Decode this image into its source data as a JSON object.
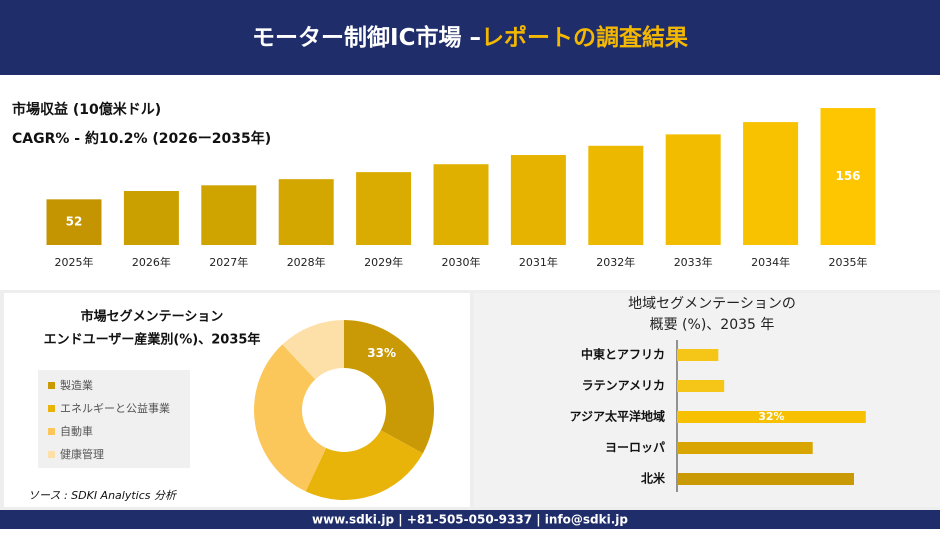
{
  "header": {
    "title": "モーター制御IC市場 –",
    "highlight": "レポートの調査結果"
  },
  "chart_data": [
    {
      "type": "bar",
      "title": "市場収益 (10億米ドル)",
      "subtitle": "CAGR% - 約10.2% (2026ー2035年)",
      "categories": [
        "2025年",
        "2026年",
        "2027年",
        "2028年",
        "2029年",
        "2030年",
        "2031年",
        "2032年",
        "2033年",
        "2034年",
        "2035年"
      ],
      "values": [
        52,
        61.5,
        68,
        75,
        83,
        92,
        102.5,
        113,
        126,
        140,
        156
      ],
      "value_labels": [
        "52",
        null,
        null,
        null,
        null,
        null,
        null,
        null,
        null,
        null,
        "156"
      ],
      "colors": [
        "#c49500",
        "#caa000",
        "#cfa300",
        "#d4a600",
        "#daab00",
        "#e0b000",
        "#e6b400",
        "#ecb800",
        "#f2bd00",
        "#f8c200",
        "#fdc600"
      ]
    },
    {
      "type": "donut",
      "title": "市場セグメンテーション",
      "subtitle": "エンドユーザー産業別(%)、2035年",
      "categories": [
        "製造業",
        "エネルギーと公益事業",
        "自動車",
        "健康管理"
      ],
      "values": [
        33,
        24,
        31,
        12
      ],
      "value_labels": [
        "33%",
        null,
        null,
        null
      ],
      "colors": [
        "#c99a06",
        "#e8b40a",
        "#fcc75a",
        "#fde0a8"
      ]
    },
    {
      "type": "hbar",
      "title": "地域セグメンテーションの",
      "subtitle": "概要 (%)、2035 年",
      "categories": [
        "中東とアフリカ",
        "ラテンアメリカ",
        "アジア太平洋地域",
        "ヨーロッパ",
        "北米"
      ],
      "values": [
        7,
        8,
        32,
        23,
        30
      ],
      "value_labels": [
        null,
        null,
        "32%",
        null,
        null
      ],
      "colors": [
        "#f5c518",
        "#f5c518",
        "#f7c000",
        "#d9a600",
        "#c99a06"
      ]
    }
  ],
  "source": "ソース : SDKI Analytics 分析",
  "footer": "www.sdki.jp | +81-505-050-9337 | info@sdki.jp"
}
